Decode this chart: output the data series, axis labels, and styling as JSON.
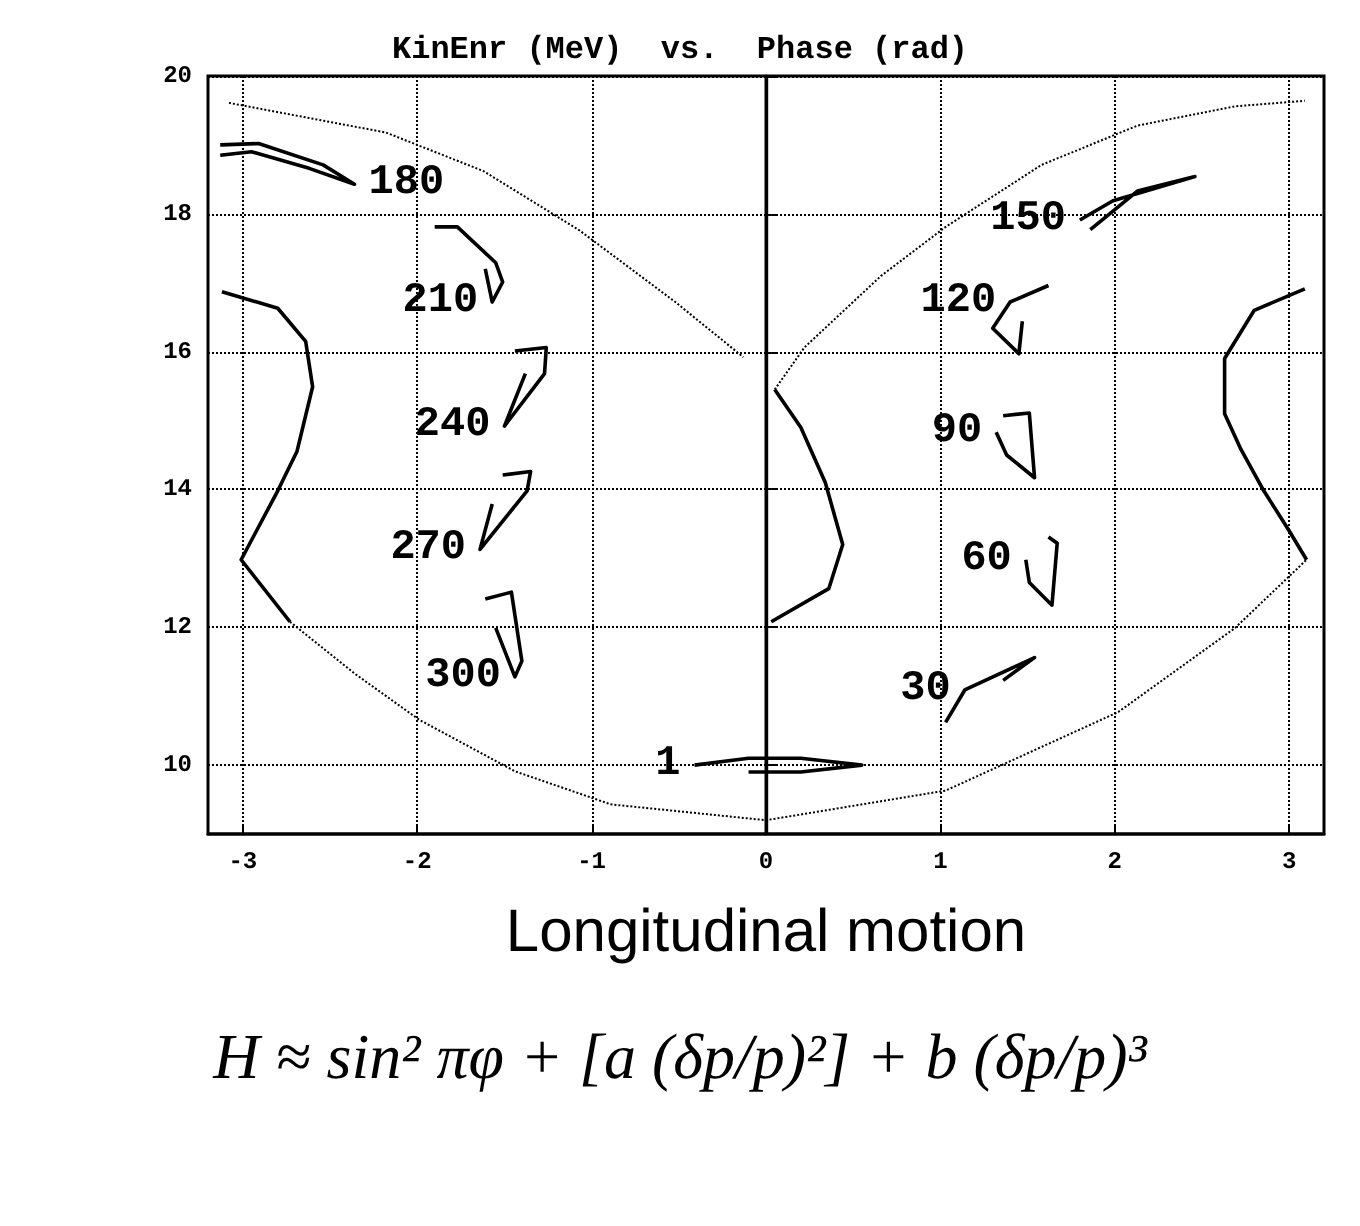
{
  "chart_data": {
    "type": "line",
    "title": "KinEnr (MeV)  vs.  Phase (rad)",
    "xlabel": "Longitudinal motion",
    "xlim": [
      -3.2,
      3.2
    ],
    "ylim": [
      9,
      20
    ],
    "xticks": [
      -3,
      -2,
      -1,
      0,
      1,
      2,
      3
    ],
    "yticks": [
      10,
      12,
      14,
      16,
      18,
      20
    ],
    "grid": true,
    "marker": "none",
    "color": "#000000",
    "ref_lines": [
      {
        "axis": "x",
        "value": 0
      }
    ],
    "series": [
      {
        "line_style": "dotted",
        "x": [
          -3.08,
          -2.18,
          -1.62,
          -1.07,
          -0.52,
          -0.13
        ],
        "values": [
          19.61,
          19.18,
          18.62,
          17.76,
          16.72,
          15.92
        ]
      },
      {
        "line_style": "dotted",
        "x": [
          0.05,
          0.22,
          0.66,
          1.03,
          1.58,
          2.13,
          2.69,
          3.09
        ],
        "values": [
          15.45,
          16.06,
          17.1,
          17.81,
          18.71,
          19.28,
          19.56,
          19.64
        ]
      },
      {
        "line_style": "solid",
        "x": [
          0.05,
          0.2,
          0.34,
          0.44,
          0.36,
          0.03
        ],
        "values": [
          15.45,
          14.9,
          14.1,
          13.2,
          12.56,
          12.08
        ]
      },
      {
        "line_style": "solid",
        "x": [
          -3.12,
          -2.8,
          -2.64,
          -2.6,
          -2.69,
          -2.8,
          -3.01,
          -2.73
        ],
        "values": [
          16.87,
          16.63,
          16.15,
          15.49,
          14.55,
          13.98,
          12.98,
          12.08
        ]
      },
      {
        "line_style": "dotted",
        "x": [
          -2.73,
          -2.36,
          -1.99,
          -1.44,
          -0.89,
          0,
          1.03,
          2.02,
          2.69,
          3.1
        ],
        "values": [
          12.08,
          11.33,
          10.66,
          9.91,
          9.43,
          9.2,
          9.63,
          10.77,
          11.99,
          12.98
        ]
      },
      {
        "line_style": "solid",
        "x": [
          3.09,
          2.8,
          2.63,
          2.63,
          2.72,
          2.85,
          3.0,
          3.1
        ],
        "values": [
          16.91,
          16.6,
          15.9,
          15.1,
          14.6,
          14.0,
          13.4,
          12.98
        ]
      },
      {
        "line_style": "solid",
        "x": [
          -3.13,
          -2.91,
          -2.54,
          -2.36,
          -2.62,
          -2.95,
          -3.13
        ],
        "values": [
          19.0,
          19.02,
          18.71,
          18.43,
          18.66,
          18.9,
          18.85
        ]
      },
      {
        "line_style": "solid",
        "x": [
          -1.9,
          -1.77,
          -1.55,
          -1.51,
          -1.57,
          -1.61
        ],
        "values": [
          17.81,
          17.81,
          17.29,
          17.01,
          16.72,
          17.2
        ]
      },
      {
        "line_style": "solid",
        "x": [
          -1.44,
          -1.26,
          -1.27,
          -1.5,
          -1.38
        ],
        "values": [
          16.01,
          16.06,
          15.68,
          14.92,
          15.68
        ]
      },
      {
        "line_style": "solid",
        "x": [
          -1.51,
          -1.35,
          -1.37,
          -1.64,
          -1.57
        ],
        "values": [
          14.21,
          14.26,
          13.98,
          13.13,
          13.79
        ]
      },
      {
        "line_style": "solid",
        "x": [
          -1.61,
          -1.46,
          -1.4,
          -1.44,
          -1.55
        ],
        "values": [
          12.41,
          12.51,
          11.51,
          11.28,
          11.99
        ]
      },
      {
        "line_style": "solid",
        "x": [
          -0.41,
          -0.1,
          0.2,
          0.55,
          0.2,
          -0.1
        ],
        "values": [
          10.0,
          10.1,
          10.1,
          10.0,
          9.9,
          9.9
        ]
      },
      {
        "line_style": "solid",
        "x": [
          1.03,
          1.14,
          1.54,
          1.36
        ],
        "values": [
          10.62,
          11.09,
          11.56,
          11.23
        ]
      },
      {
        "line_style": "solid",
        "x": [
          1.62,
          1.67,
          1.64,
          1.51,
          1.49
        ],
        "values": [
          13.31,
          13.22,
          12.32,
          12.65,
          12.98
        ]
      },
      {
        "line_style": "solid",
        "x": [
          1.36,
          1.51,
          1.54,
          1.38,
          1.32
        ],
        "values": [
          15.07,
          15.11,
          14.17,
          14.5,
          14.83
        ]
      },
      {
        "line_style": "solid",
        "x": [
          1.62,
          1.4,
          1.3,
          1.45,
          1.47
        ],
        "values": [
          16.96,
          16.72,
          16.34,
          15.97,
          16.44
        ]
      },
      {
        "line_style": "solid",
        "x": [
          1.8,
          1.99,
          2.46,
          2.13,
          1.86
        ],
        "values": [
          17.91,
          18.19,
          18.54,
          18.33,
          17.77
        ]
      }
    ],
    "annotations": [
      {
        "text": "180",
        "x": -2.36,
        "y": 18.43
      },
      {
        "text": "210",
        "x": -1.57,
        "y": 16.72
      },
      {
        "text": "240",
        "x": -1.5,
        "y": 14.92
      },
      {
        "text": "270",
        "x": -1.64,
        "y": 13.13
      },
      {
        "text": "300",
        "x": -1.44,
        "y": 11.28
      },
      {
        "text": "1",
        "x": -0.41,
        "y": 10.0
      },
      {
        "text": "30",
        "x": 1.14,
        "y": 11.09
      },
      {
        "text": "60",
        "x": 1.49,
        "y": 12.98
      },
      {
        "text": "90",
        "x": 1.32,
        "y": 14.83
      },
      {
        "text": "120",
        "x": 1.4,
        "y": 16.72
      },
      {
        "text": "150",
        "x": 1.8,
        "y": 17.91
      },
      "H ≈ sin² πφ + [a (δp/p)²] + b (δp/p)³"
    ]
  }
}
